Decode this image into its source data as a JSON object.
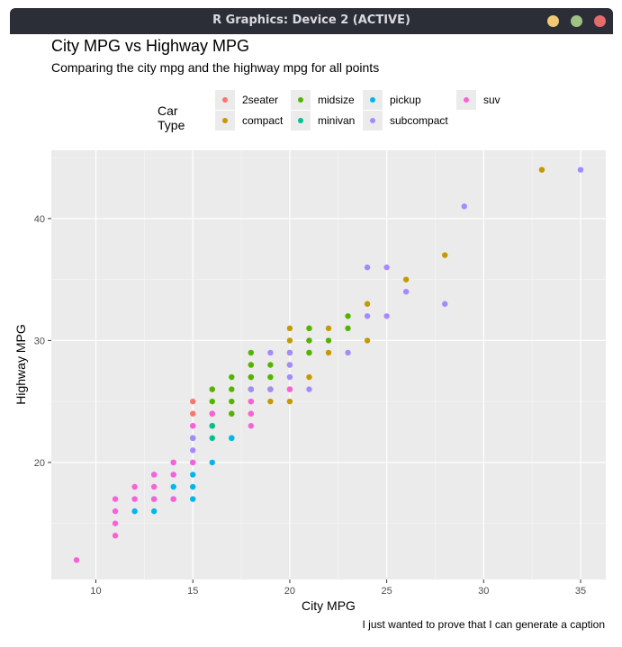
{
  "window": {
    "title": "R Graphics: Device 2 (ACTIVE)"
  },
  "chart_data": {
    "type": "scatter",
    "title": "City MPG vs Highway MPG",
    "subtitle": "Comparing the city mpg and the highway mpg for all points",
    "caption": "I just wanted to prove that I can generate a caption",
    "xlabel": "City MPG",
    "ylabel": "Highway MPG",
    "xlim": [
      7.7,
      36.3
    ],
    "ylim": [
      10.4,
      45.6
    ],
    "x_ticks": [
      10,
      15,
      20,
      25,
      30,
      35
    ],
    "y_ticks": [
      20,
      30,
      40
    ],
    "grid": true,
    "legend": {
      "title": "Car Type",
      "position": "top"
    },
    "series": [
      {
        "name": "2seater",
        "color": "#F8766D",
        "points": [
          [
            15,
            24
          ],
          [
            15,
            25
          ],
          [
            16,
            26
          ]
        ]
      },
      {
        "name": "compact",
        "color": "#C49A00",
        "points": [
          [
            18,
            27
          ],
          [
            20,
            26
          ],
          [
            21,
            29
          ],
          [
            21,
            31
          ],
          [
            16,
            24
          ],
          [
            16,
            23
          ],
          [
            18,
            26
          ],
          [
            19,
            25
          ],
          [
            20,
            29
          ],
          [
            21,
            27
          ],
          [
            22,
            31
          ],
          [
            22,
            29
          ],
          [
            24,
            33
          ],
          [
            24,
            30
          ],
          [
            26,
            35
          ],
          [
            28,
            37
          ],
          [
            33,
            44
          ],
          [
            20,
            25
          ],
          [
            18,
            24
          ],
          [
            17,
            24
          ],
          [
            19,
            26
          ],
          [
            20,
            30
          ],
          [
            21,
            30
          ],
          [
            20,
            31
          ],
          [
            18,
            28
          ]
        ]
      },
      {
        "name": "midsize",
        "color": "#53B400",
        "points": [
          [
            16,
            26
          ],
          [
            17,
            26
          ],
          [
            18,
            26
          ],
          [
            18,
            27
          ],
          [
            18,
            28
          ],
          [
            18,
            29
          ],
          [
            19,
            26
          ],
          [
            19,
            27
          ],
          [
            19,
            28
          ],
          [
            20,
            28
          ],
          [
            21,
            29
          ],
          [
            21,
            30
          ],
          [
            21,
            31
          ],
          [
            22,
            30
          ],
          [
            23,
            31
          ],
          [
            23,
            32
          ],
          [
            16,
            25
          ],
          [
            17,
            25
          ],
          [
            17,
            27
          ],
          [
            18,
            25
          ],
          [
            16,
            23
          ],
          [
            17,
            24
          ]
        ]
      },
      {
        "name": "minivan",
        "color": "#00C094",
        "points": [
          [
            16,
            22
          ],
          [
            17,
            22
          ],
          [
            15,
            22
          ],
          [
            16,
            23
          ]
        ]
      },
      {
        "name": "pickup",
        "color": "#00B6EB",
        "points": [
          [
            15,
            20
          ],
          [
            15,
            19
          ],
          [
            15,
            17
          ],
          [
            14,
            17
          ],
          [
            14,
            18
          ],
          [
            13,
            16
          ],
          [
            12,
            16
          ],
          [
            15,
            18
          ],
          [
            14,
            19
          ],
          [
            16,
            20
          ],
          [
            13,
            17
          ],
          [
            17,
            22
          ],
          [
            13,
            19
          ],
          [
            14,
            20
          ]
        ]
      },
      {
        "name": "subcompact",
        "color": "#A58AFF",
        "points": [
          [
            15,
            21
          ],
          [
            15,
            22
          ],
          [
            15,
            23
          ],
          [
            16,
            24
          ],
          [
            18,
            26
          ],
          [
            19,
            26
          ],
          [
            19,
            29
          ],
          [
            20,
            27
          ],
          [
            20,
            28
          ],
          [
            20,
            29
          ],
          [
            21,
            26
          ],
          [
            23,
            29
          ],
          [
            24,
            32
          ],
          [
            24,
            36
          ],
          [
            25,
            32
          ],
          [
            25,
            36
          ],
          [
            26,
            34
          ],
          [
            28,
            33
          ],
          [
            29,
            41
          ],
          [
            35,
            44
          ]
        ]
      },
      {
        "name": "suv",
        "color": "#FB61D7",
        "points": [
          [
            9,
            12
          ],
          [
            11,
            14
          ],
          [
            11,
            15
          ],
          [
            11,
            16
          ],
          [
            11,
            17
          ],
          [
            12,
            17
          ],
          [
            12,
            18
          ],
          [
            13,
            17
          ],
          [
            13,
            18
          ],
          [
            13,
            19
          ],
          [
            14,
            17
          ],
          [
            14,
            19
          ],
          [
            14,
            20
          ],
          [
            15,
            20
          ],
          [
            15,
            23
          ],
          [
            16,
            24
          ],
          [
            18,
            23
          ],
          [
            18,
            24
          ],
          [
            18,
            25
          ],
          [
            20,
            26
          ]
        ]
      }
    ]
  }
}
